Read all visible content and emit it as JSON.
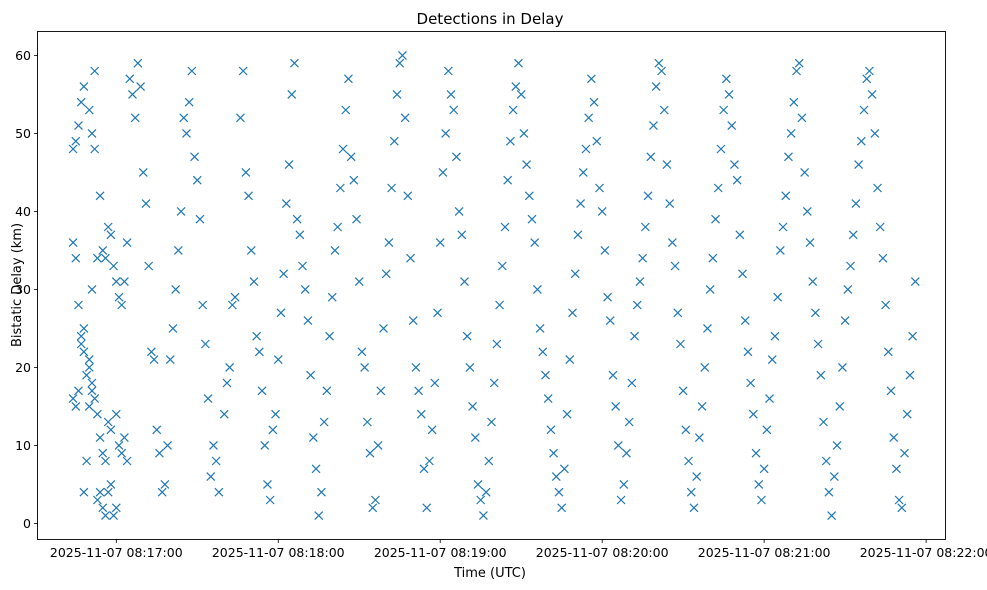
{
  "chart_data": {
    "type": "scatter",
    "title": "Detections in Delay",
    "xlabel": "Time (UTC)",
    "ylabel": "Bistatic Delay (km)",
    "marker": "x",
    "color": "#1f77b4",
    "xlim_seconds": [
      -29,
      307
    ],
    "ylim": [
      -2,
      63
    ],
    "x_ticks": [
      {
        "t": 0,
        "label": "2025-11-07 08:17:00"
      },
      {
        "t": 60,
        "label": "2025-11-07 08:18:00"
      },
      {
        "t": 120,
        "label": "2025-11-07 08:19:00"
      },
      {
        "t": 180,
        "label": "2025-11-07 08:20:00"
      },
      {
        "t": 240,
        "label": "2025-11-07 08:21:00"
      },
      {
        "t": 300,
        "label": "2025-11-07 08:22:00"
      }
    ],
    "y_ticks": [
      0,
      10,
      20,
      30,
      40,
      50,
      60
    ],
    "x_unit_note": "x values are seconds after 2025-11-07 08:17:00 UTC",
    "points": [
      [
        -16,
        48
      ],
      [
        -15,
        49
      ],
      [
        -14,
        51
      ],
      [
        -13,
        54
      ],
      [
        -12,
        56
      ],
      [
        -10,
        53
      ],
      [
        -9,
        50
      ],
      [
        -8,
        58
      ],
      [
        -8,
        48
      ],
      [
        -6,
        42
      ],
      [
        -5,
        35
      ],
      [
        -4,
        34
      ],
      [
        -3,
        38
      ],
      [
        -2,
        37
      ],
      [
        -1,
        33
      ],
      [
        0,
        31
      ],
      [
        1,
        29
      ],
      [
        2,
        28
      ],
      [
        3,
        31
      ],
      [
        4,
        36
      ],
      [
        -16,
        36
      ],
      [
        -15,
        34
      ],
      [
        -14,
        28
      ],
      [
        -13,
        24
      ],
      [
        -12,
        22
      ],
      [
        -11,
        19
      ],
      [
        -10,
        21
      ],
      [
        -9,
        17
      ],
      [
        -8,
        16
      ],
      [
        -7,
        14
      ],
      [
        -6,
        11
      ],
      [
        -5,
        9
      ],
      [
        -4,
        8
      ],
      [
        -3,
        13
      ],
      [
        -2,
        12
      ],
      [
        0,
        14
      ],
      [
        1,
        10
      ],
      [
        2,
        9
      ],
      [
        3,
        11
      ],
      [
        4,
        8
      ],
      [
        -16,
        16
      ],
      [
        -15,
        15
      ],
      [
        -14,
        17
      ],
      [
        -13,
        23
      ],
      [
        -12,
        25
      ],
      [
        -10,
        20
      ],
      [
        -9,
        18
      ],
      [
        -7,
        3
      ],
      [
        -6,
        4
      ],
      [
        -5,
        2
      ],
      [
        -4,
        1
      ],
      [
        -3,
        4
      ],
      [
        -2,
        5
      ],
      [
        -1,
        1
      ],
      [
        0,
        2
      ],
      [
        -12,
        4
      ],
      [
        -11,
        8
      ],
      [
        -10,
        15
      ],
      [
        -9,
        30
      ],
      [
        -7,
        34
      ],
      [
        5,
        57
      ],
      [
        6,
        55
      ],
      [
        7,
        52
      ],
      [
        8,
        59
      ],
      [
        9,
        56
      ],
      [
        10,
        45
      ],
      [
        11,
        41
      ],
      [
        12,
        33
      ],
      [
        13,
        22
      ],
      [
        14,
        21
      ],
      [
        15,
        12
      ],
      [
        16,
        9
      ],
      [
        17,
        4
      ],
      [
        18,
        5
      ],
      [
        19,
        10
      ],
      [
        20,
        21
      ],
      [
        21,
        25
      ],
      [
        22,
        30
      ],
      [
        23,
        35
      ],
      [
        24,
        40
      ],
      [
        25,
        52
      ],
      [
        26,
        50
      ],
      [
        27,
        54
      ],
      [
        28,
        58
      ],
      [
        29,
        47
      ],
      [
        30,
        44
      ],
      [
        31,
        39
      ],
      [
        32,
        28
      ],
      [
        33,
        23
      ],
      [
        34,
        16
      ],
      [
        35,
        6
      ],
      [
        36,
        10
      ],
      [
        37,
        8
      ],
      [
        38,
        4
      ],
      [
        40,
        14
      ],
      [
        41,
        18
      ],
      [
        42,
        20
      ],
      [
        43,
        28
      ],
      [
        44,
        29
      ],
      [
        46,
        52
      ],
      [
        47,
        58
      ],
      [
        48,
        45
      ],
      [
        49,
        42
      ],
      [
        50,
        35
      ],
      [
        51,
        31
      ],
      [
        52,
        24
      ],
      [
        53,
        22
      ],
      [
        54,
        17
      ],
      [
        55,
        10
      ],
      [
        56,
        5
      ],
      [
        57,
        3
      ],
      [
        58,
        12
      ],
      [
        59,
        14
      ],
      [
        60,
        21
      ],
      [
        61,
        27
      ],
      [
        62,
        32
      ],
      [
        63,
        41
      ],
      [
        64,
        46
      ],
      [
        65,
        55
      ],
      [
        66,
        59
      ],
      [
        67,
        39
      ],
      [
        68,
        37
      ],
      [
        69,
        33
      ],
      [
        70,
        30
      ],
      [
        71,
        26
      ],
      [
        72,
        19
      ],
      [
        73,
        11
      ],
      [
        74,
        7
      ],
      [
        75,
        1
      ],
      [
        76,
        4
      ],
      [
        77,
        13
      ],
      [
        78,
        17
      ],
      [
        79,
        24
      ],
      [
        80,
        29
      ],
      [
        81,
        35
      ],
      [
        82,
        38
      ],
      [
        83,
        43
      ],
      [
        84,
        48
      ],
      [
        85,
        53
      ],
      [
        86,
        57
      ],
      [
        87,
        47
      ],
      [
        88,
        44
      ],
      [
        89,
        39
      ],
      [
        90,
        31
      ],
      [
        91,
        22
      ],
      [
        92,
        20
      ],
      [
        93,
        13
      ],
      [
        94,
        9
      ],
      [
        95,
        2
      ],
      [
        96,
        3
      ],
      [
        97,
        10
      ],
      [
        98,
        17
      ],
      [
        99,
        25
      ],
      [
        100,
        32
      ],
      [
        101,
        36
      ],
      [
        102,
        43
      ],
      [
        103,
        49
      ],
      [
        104,
        55
      ],
      [
        105,
        59
      ],
      [
        106,
        60
      ],
      [
        107,
        52
      ],
      [
        108,
        42
      ],
      [
        109,
        34
      ],
      [
        110,
        26
      ],
      [
        111,
        20
      ],
      [
        112,
        17
      ],
      [
        113,
        14
      ],
      [
        114,
        7
      ],
      [
        115,
        2
      ],
      [
        116,
        8
      ],
      [
        117,
        12
      ],
      [
        118,
        18
      ],
      [
        119,
        27
      ],
      [
        120,
        36
      ],
      [
        121,
        45
      ],
      [
        122,
        50
      ],
      [
        123,
        58
      ],
      [
        124,
        55
      ],
      [
        125,
        53
      ],
      [
        126,
        47
      ],
      [
        127,
        40
      ],
      [
        128,
        37
      ],
      [
        129,
        31
      ],
      [
        130,
        24
      ],
      [
        131,
        20
      ],
      [
        132,
        15
      ],
      [
        133,
        11
      ],
      [
        134,
        5
      ],
      [
        135,
        3
      ],
      [
        136,
        1
      ],
      [
        137,
        4
      ],
      [
        138,
        8
      ],
      [
        139,
        13
      ],
      [
        140,
        18
      ],
      [
        141,
        23
      ],
      [
        142,
        28
      ],
      [
        143,
        33
      ],
      [
        144,
        38
      ],
      [
        145,
        44
      ],
      [
        146,
        49
      ],
      [
        147,
        53
      ],
      [
        148,
        56
      ],
      [
        149,
        59
      ],
      [
        150,
        55
      ],
      [
        151,
        50
      ],
      [
        152,
        46
      ],
      [
        153,
        42
      ],
      [
        154,
        39
      ],
      [
        155,
        36
      ],
      [
        156,
        30
      ],
      [
        157,
        25
      ],
      [
        158,
        22
      ],
      [
        159,
        19
      ],
      [
        160,
        16
      ],
      [
        161,
        12
      ],
      [
        162,
        9
      ],
      [
        163,
        6
      ],
      [
        164,
        4
      ],
      [
        165,
        2
      ],
      [
        166,
        7
      ],
      [
        167,
        14
      ],
      [
        168,
        21
      ],
      [
        169,
        27
      ],
      [
        170,
        32
      ],
      [
        171,
        37
      ],
      [
        172,
        41
      ],
      [
        173,
        45
      ],
      [
        174,
        48
      ],
      [
        175,
        52
      ],
      [
        176,
        57
      ],
      [
        177,
        54
      ],
      [
        178,
        49
      ],
      [
        179,
        43
      ],
      [
        180,
        40
      ],
      [
        181,
        35
      ],
      [
        182,
        29
      ],
      [
        183,
        26
      ],
      [
        184,
        19
      ],
      [
        185,
        15
      ],
      [
        186,
        10
      ],
      [
        187,
        3
      ],
      [
        188,
        5
      ],
      [
        189,
        9
      ],
      [
        190,
        13
      ],
      [
        191,
        18
      ],
      [
        192,
        24
      ],
      [
        193,
        28
      ],
      [
        194,
        31
      ],
      [
        195,
        34
      ],
      [
        196,
        38
      ],
      [
        197,
        42
      ],
      [
        198,
        47
      ],
      [
        199,
        51
      ],
      [
        200,
        56
      ],
      [
        201,
        59
      ],
      [
        202,
        58
      ],
      [
        203,
        53
      ],
      [
        204,
        46
      ],
      [
        205,
        41
      ],
      [
        206,
        36
      ],
      [
        207,
        33
      ],
      [
        208,
        27
      ],
      [
        209,
        23
      ],
      [
        210,
        17
      ],
      [
        211,
        12
      ],
      [
        212,
        8
      ],
      [
        213,
        4
      ],
      [
        214,
        2
      ],
      [
        215,
        6
      ],
      [
        216,
        11
      ],
      [
        217,
        15
      ],
      [
        218,
        20
      ],
      [
        219,
        25
      ],
      [
        220,
        30
      ],
      [
        221,
        34
      ],
      [
        222,
        39
      ],
      [
        223,
        43
      ],
      [
        224,
        48
      ],
      [
        225,
        53
      ],
      [
        226,
        57
      ],
      [
        227,
        55
      ],
      [
        228,
        51
      ],
      [
        229,
        46
      ],
      [
        230,
        44
      ],
      [
        231,
        37
      ],
      [
        232,
        32
      ],
      [
        233,
        26
      ],
      [
        234,
        22
      ],
      [
        235,
        18
      ],
      [
        236,
        14
      ],
      [
        237,
        9
      ],
      [
        238,
        5
      ],
      [
        239,
        3
      ],
      [
        240,
        7
      ],
      [
        241,
        12
      ],
      [
        242,
        16
      ],
      [
        243,
        21
      ],
      [
        244,
        24
      ],
      [
        245,
        29
      ],
      [
        246,
        35
      ],
      [
        247,
        38
      ],
      [
        248,
        42
      ],
      [
        249,
        47
      ],
      [
        250,
        50
      ],
      [
        251,
        54
      ],
      [
        252,
        58
      ],
      [
        253,
        59
      ],
      [
        254,
        52
      ],
      [
        255,
        45
      ],
      [
        256,
        40
      ],
      [
        257,
        36
      ],
      [
        258,
        31
      ],
      [
        259,
        27
      ],
      [
        260,
        23
      ],
      [
        261,
        19
      ],
      [
        262,
        13
      ],
      [
        263,
        8
      ],
      [
        264,
        4
      ],
      [
        265,
        1
      ],
      [
        266,
        6
      ],
      [
        267,
        10
      ],
      [
        268,
        15
      ],
      [
        269,
        20
      ],
      [
        270,
        26
      ],
      [
        271,
        30
      ],
      [
        272,
        33
      ],
      [
        273,
        37
      ],
      [
        274,
        41
      ],
      [
        275,
        46
      ],
      [
        276,
        49
      ],
      [
        277,
        53
      ],
      [
        278,
        57
      ],
      [
        279,
        58
      ],
      [
        280,
        55
      ],
      [
        281,
        50
      ],
      [
        282,
        43
      ],
      [
        283,
        38
      ],
      [
        284,
        34
      ],
      [
        285,
        28
      ],
      [
        286,
        22
      ],
      [
        287,
        17
      ],
      [
        288,
        11
      ],
      [
        289,
        7
      ],
      [
        290,
        3
      ],
      [
        291,
        2
      ],
      [
        292,
        9
      ],
      [
        293,
        14
      ],
      [
        294,
        19
      ],
      [
        295,
        24
      ],
      [
        296,
        31
      ]
    ]
  }
}
